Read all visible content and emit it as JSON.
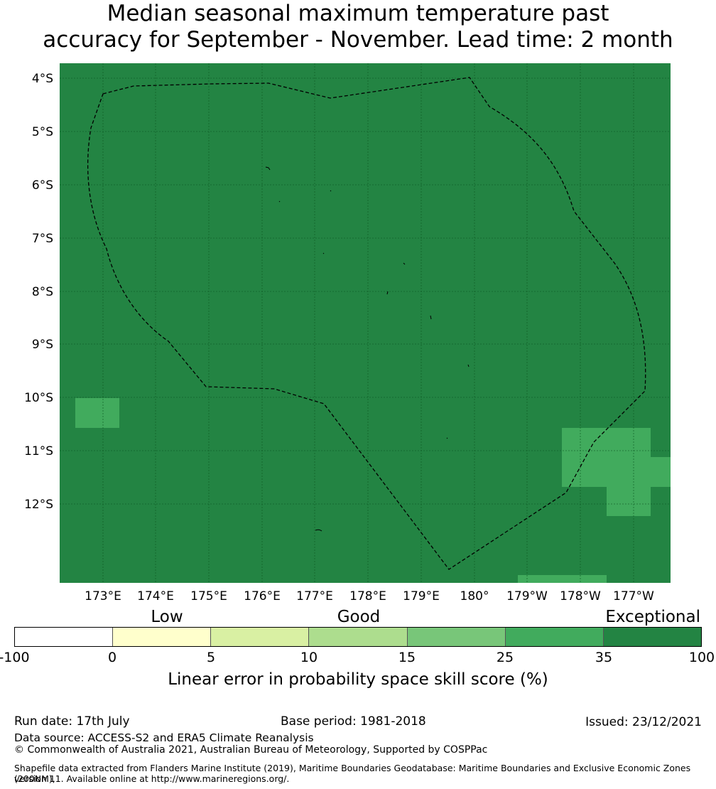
{
  "title": {
    "line1": "Median seasonal maximum temperature past",
    "line2": "accuracy for September - November. Lead time: 2 month"
  },
  "map": {
    "lat_labels": [
      "4°S",
      "5°S",
      "6°S",
      "7°S",
      "8°S",
      "9°S",
      "10°S",
      "11°S",
      "12°S"
    ],
    "lon_labels": [
      "173°E",
      "174°E",
      "175°E",
      "176°E",
      "177°E",
      "178°E",
      "179°E",
      "180°",
      "179°W",
      "178°W",
      "177°W"
    ],
    "colors": {
      "exceptional": "#238443",
      "very_good": "#41ab5d"
    },
    "boundary": "dashed EEZ outline"
  },
  "colorbar": {
    "category_labels": [
      "Low",
      "Good",
      "Exceptional"
    ],
    "ticks": [
      "-100",
      "0",
      "5",
      "10",
      "15",
      "25",
      "35",
      "100"
    ],
    "colors": [
      "#ffffff",
      "#ffffcc",
      "#d9f0a3",
      "#addd8e",
      "#78c679",
      "#41ab5d",
      "#238443"
    ],
    "label": "Linear error in probability space skill score (%)"
  },
  "footer": {
    "run_date": "Run date: 17th July",
    "base_period": "Base period: 1981-2018",
    "issued": "Issued: 23/12/2021",
    "data_source": "Data source: ACCESS-S2 and ERA5 Climate Reanalysis",
    "copyright": "© Commonwealth of Australia 2021, Australian Bureau of Meteorology, Supported by COSPPac",
    "shapefile_line1": "Shapefile data extracted from Flanders Marine Institute (2019), Maritime Boundaries Geodatabase: Maritime Boundaries and Exclusive Economic Zones (200NM),",
    "shapefile_line2": "version 11. Available online at http://www.marineregions.org/."
  }
}
